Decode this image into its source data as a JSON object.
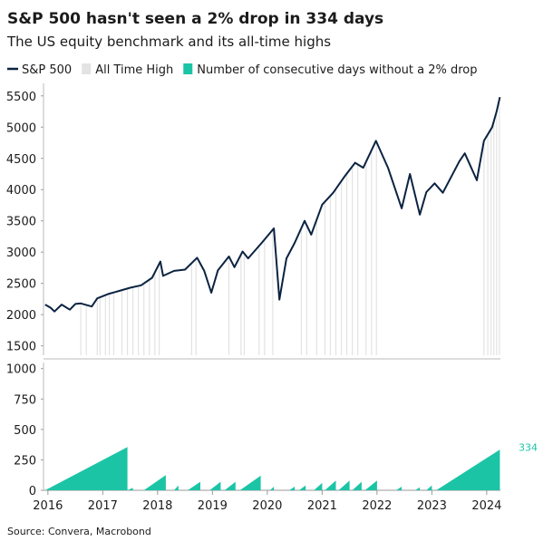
{
  "chart_data": [
    {
      "type": "line",
      "title": "S&P 500 hasn't seen a 2% drop in 334 days",
      "subtitle": "The US equity benchmark and its all-time highs",
      "source": "Source: Convera, Macrobond",
      "x": [
        2015.95,
        2016.05,
        2016.12,
        2016.25,
        2016.4,
        2016.5,
        2016.6,
        2016.8,
        2016.9,
        2017.1,
        2017.3,
        2017.5,
        2017.7,
        2017.9,
        2018.05,
        2018.1,
        2018.3,
        2018.5,
        2018.72,
        2018.85,
        2018.98,
        2019.1,
        2019.3,
        2019.4,
        2019.55,
        2019.65,
        2019.9,
        2020.12,
        2020.22,
        2020.35,
        2020.5,
        2020.68,
        2020.8,
        2021.0,
        2021.2,
        2021.4,
        2021.6,
        2021.75,
        2021.98,
        2022.2,
        2022.45,
        2022.6,
        2022.78,
        2022.9,
        2023.05,
        2023.2,
        2023.5,
        2023.6,
        2023.82,
        2023.95,
        2024.1,
        2024.18,
        2024.24
      ],
      "series": [
        {
          "name": "S&P 500",
          "color": "#0b2341",
          "values": [
            2160,
            2110,
            2050,
            2160,
            2080,
            2170,
            2180,
            2130,
            2260,
            2330,
            2380,
            2430,
            2470,
            2590,
            2850,
            2620,
            2700,
            2720,
            2910,
            2700,
            2350,
            2710,
            2930,
            2760,
            3010,
            2900,
            3150,
            3380,
            2240,
            2900,
            3150,
            3500,
            3280,
            3760,
            3950,
            4200,
            4430,
            4350,
            4780,
            4350,
            3700,
            4250,
            3600,
            3960,
            4100,
            3950,
            4450,
            4580,
            4150,
            4780,
            5000,
            5250,
            5480
          ]
        },
        {
          "name": "All Time High",
          "color": "#e3e3e3",
          "x": [
            2016.6,
            2016.7,
            2016.9,
            2016.95,
            2017.05,
            2017.12,
            2017.2,
            2017.35,
            2017.45,
            2017.55,
            2017.65,
            2017.75,
            2017.85,
            2017.95,
            2018.03,
            2018.62,
            2018.7,
            2019.3,
            2019.52,
            2019.58,
            2019.85,
            2019.95,
            2020.1,
            2020.62,
            2020.72,
            2020.9,
            2021.05,
            2021.15,
            2021.25,
            2021.35,
            2021.45,
            2021.55,
            2021.65,
            2021.8,
            2021.9,
            2021.99,
            2023.95,
            2024.02,
            2024.08,
            2024.13,
            2024.18,
            2024.23
          ]
        }
      ],
      "ylim": [
        1350,
        5700
      ],
      "yticks": [
        1500,
        2000,
        2500,
        3000,
        3500,
        4000,
        4500,
        5000,
        5500
      ],
      "xlim": [
        2015.92,
        2024.25
      ]
    },
    {
      "type": "area",
      "x": [
        2015.95,
        2017.45,
        2017.45,
        2017.55,
        2017.55,
        2017.75,
        2018.15,
        2018.15,
        2018.3,
        2018.38,
        2018.38,
        2018.55,
        2018.78,
        2018.78,
        2018.95,
        2019.15,
        2019.15,
        2019.22,
        2019.42,
        2019.42,
        2019.5,
        2019.88,
        2019.88,
        2020.05,
        2020.12,
        2020.12,
        2020.4,
        2020.5,
        2020.5,
        2020.58,
        2020.7,
        2020.7,
        2020.85,
        2021.0,
        2021.0,
        2021.05,
        2021.25,
        2021.25,
        2021.3,
        2021.5,
        2021.5,
        2021.55,
        2021.72,
        2021.72,
        2021.78,
        2022.0,
        2022.0,
        2022.35,
        2022.45,
        2022.45,
        2022.7,
        2022.78,
        2022.78,
        2022.9,
        2023.0,
        2023.0,
        2023.08,
        2024.24,
        2024.24
      ],
      "series": [
        {
          "name": "Number of consecutive days without a 2% drop",
          "color": "#1cc4a6",
          "values": [
            0,
            355,
            0,
            20,
            0,
            0,
            125,
            0,
            0,
            40,
            0,
            0,
            70,
            0,
            0,
            70,
            0,
            0,
            70,
            0,
            0,
            120,
            0,
            0,
            30,
            0,
            0,
            30,
            0,
            0,
            40,
            0,
            0,
            60,
            0,
            0,
            80,
            0,
            0,
            80,
            0,
            0,
            70,
            0,
            0,
            80,
            0,
            0,
            30,
            0,
            0,
            25,
            0,
            0,
            40,
            0,
            0,
            334,
            0
          ],
          "end_label": "334"
        }
      ],
      "ylim": [
        0,
        1050
      ],
      "yticks": [
        0,
        250,
        500,
        750,
        1000
      ],
      "xlim": [
        2015.92,
        2024.25
      ],
      "xticks": [
        2016,
        2017,
        2018,
        2019,
        2020,
        2021,
        2022,
        2023,
        2024
      ]
    }
  ]
}
